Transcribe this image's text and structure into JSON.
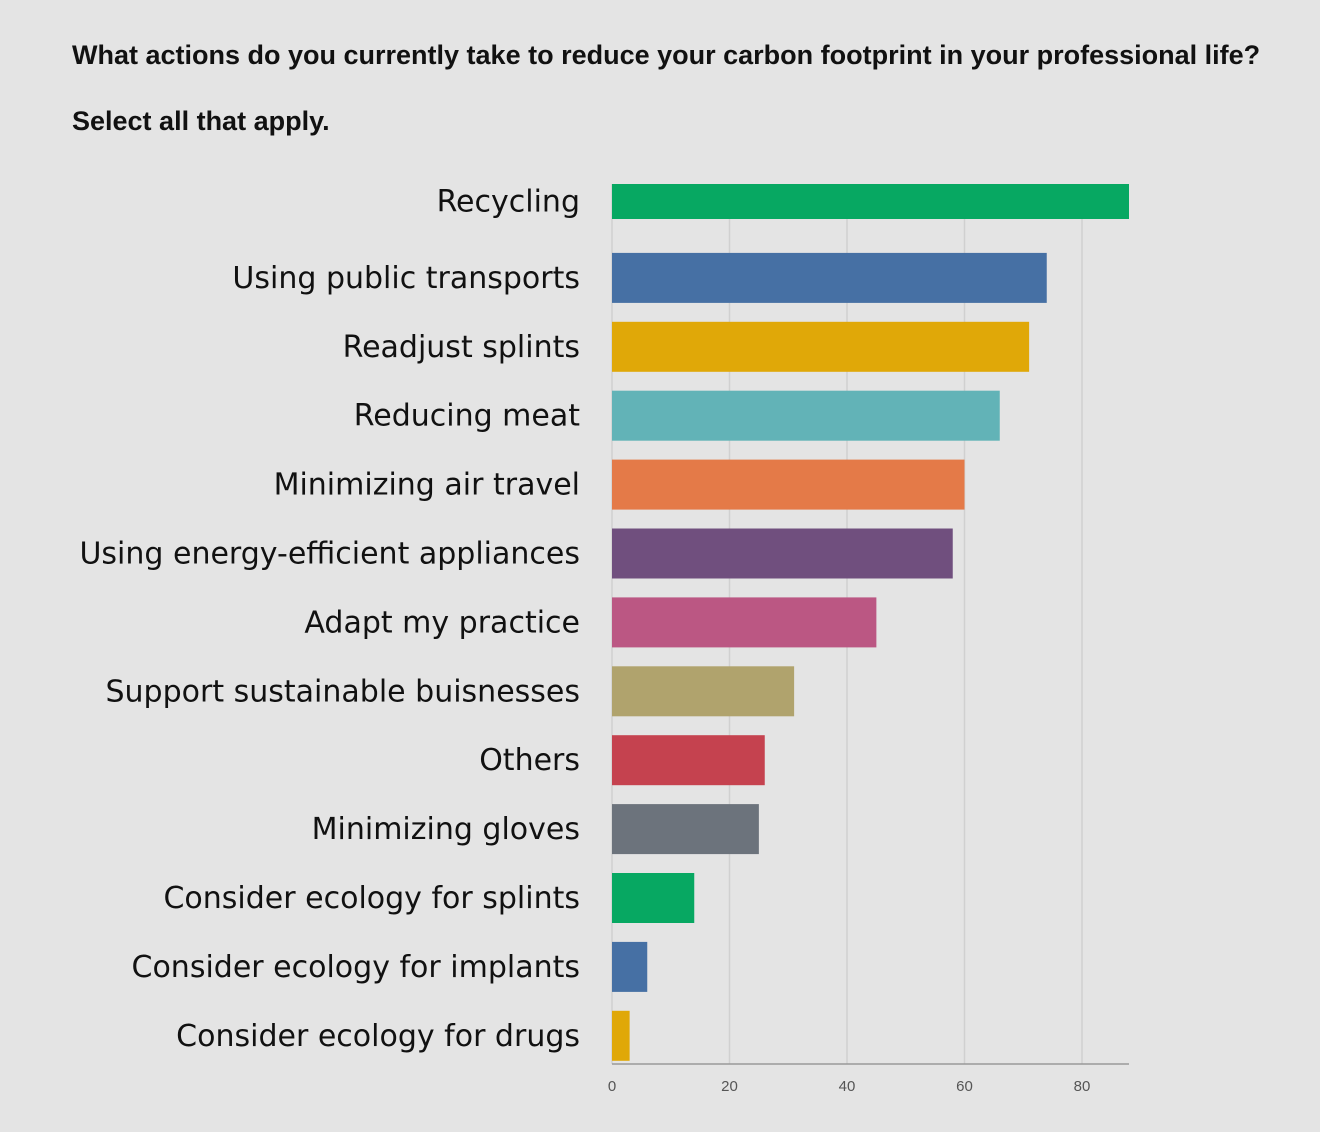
{
  "chart_data": {
    "type": "bar",
    "orientation": "horizontal",
    "title": "What actions do you currently take to reduce your carbon footprint in your professional life? Select all that apply.",
    "categories": [
      "Recycling",
      "Using public transports",
      "Readjust splints",
      "Reducing meat",
      "Minimizing air travel",
      "Using energy-efficient appliances",
      "Adapt my practice",
      "Support sustainable buisnesses",
      "Others",
      "Minimizing gloves",
      "Consider ecology for splints",
      "Consider ecology for implants",
      "Consider ecology for drugs"
    ],
    "values": [
      88,
      74,
      71,
      66,
      60,
      58,
      45,
      31,
      26,
      25,
      14,
      6,
      3
    ],
    "colors": [
      "#07a862",
      "#4670a4",
      "#e0a808",
      "#62b3b7",
      "#e47a48",
      "#704f7e",
      "#bb5783",
      "#b0a36d",
      "#c5424f",
      "#6c737c",
      "#07a862",
      "#4670a4",
      "#e0a808"
    ],
    "xticks": [
      "0",
      "20",
      "40",
      "60",
      "80"
    ],
    "xlim": [
      0,
      88
    ],
    "grid": true,
    "legend": "none",
    "xlabel": "",
    "ylabel": ""
  }
}
